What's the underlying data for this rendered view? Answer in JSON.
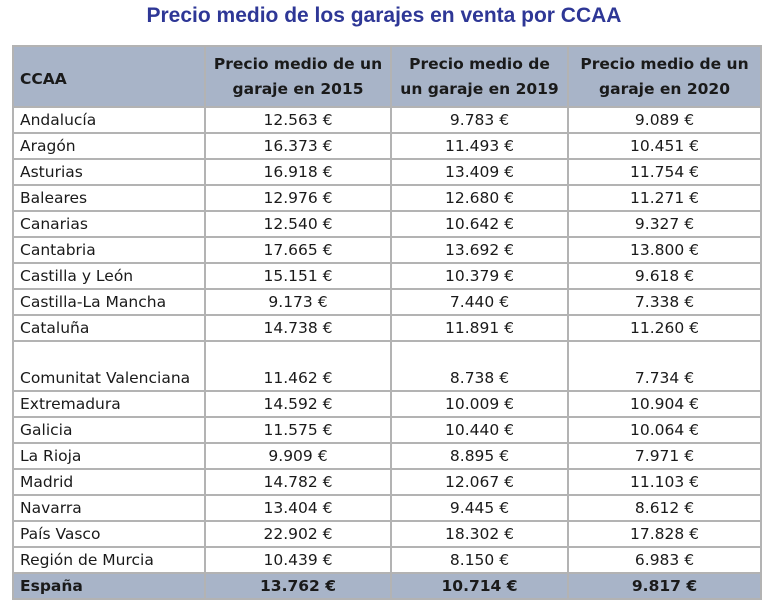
{
  "title": "Precio medio de los garajes en venta por CCAA",
  "table": {
    "headers": [
      "CCAA",
      "Precio medio de un garaje en 2015",
      "Precio medio de un garaje en 2019",
      "Precio medio de un garaje en 2020"
    ],
    "rows": [
      {
        "ccaa": "Andalucía",
        "p2015": "12.563 €",
        "p2019": "9.783 €",
        "p2020": "9.089 €"
      },
      {
        "ccaa": "Aragón",
        "p2015": "16.373 €",
        "p2019": "11.493 €",
        "p2020": "10.451 €"
      },
      {
        "ccaa": "Asturias",
        "p2015": "16.918 €",
        "p2019": "13.409 €",
        "p2020": "11.754 €"
      },
      {
        "ccaa": "Baleares",
        "p2015": "12.976 €",
        "p2019": "12.680 €",
        "p2020": "11.271 €"
      },
      {
        "ccaa": "Canarias",
        "p2015": "12.540 €",
        "p2019": "10.642 €",
        "p2020": "9.327 €"
      },
      {
        "ccaa": "Cantabria",
        "p2015": "17.665 €",
        "p2019": "13.692 €",
        "p2020": "13.800 €"
      },
      {
        "ccaa": "Castilla y León",
        "p2015": "15.151 €",
        "p2019": "10.379 €",
        "p2020": "9.618 €"
      },
      {
        "ccaa": "Castilla-La Mancha",
        "p2015": "9.173 €",
        "p2019": "7.440 €",
        "p2020": "7.338 €"
      },
      {
        "ccaa": "Cataluña",
        "p2015": "14.738 €",
        "p2019": "11.891 €",
        "p2020": "11.260 €"
      },
      {
        "ccaa": "Comunitat Valenciana",
        "p2015": "11.462 €",
        "p2019": "8.738 €",
        "p2020": "7.734 €"
      },
      {
        "ccaa": "Extremadura",
        "p2015": "14.592 €",
        "p2019": "10.009 €",
        "p2020": "10.904 €"
      },
      {
        "ccaa": "Galicia",
        "p2015": "11.575 €",
        "p2019": "10.440 €",
        "p2020": "10.064 €"
      },
      {
        "ccaa": "La Rioja",
        "p2015": "9.909 €",
        "p2019": "8.895 €",
        "p2020": "7.971 €"
      },
      {
        "ccaa": "Madrid",
        "p2015": "14.782 €",
        "p2019": "12.067 €",
        "p2020": "11.103 €"
      },
      {
        "ccaa": "Navarra",
        "p2015": "13.404 €",
        "p2019": "9.445 €",
        "p2020": "8.612 €"
      },
      {
        "ccaa": "País Vasco",
        "p2015": "22.902 €",
        "p2019": "18.302 €",
        "p2020": "17.828 €"
      },
      {
        "ccaa": "Región de Murcia",
        "p2015": "10.439 €",
        "p2019": "8.150 €",
        "p2020": "6.983 €"
      }
    ],
    "total": {
      "ccaa": "España",
      "p2015": "13.762 €",
      "p2019": "10.714 €",
      "p2020": "9.817 €"
    }
  },
  "colors": {
    "title": "#2e3796",
    "header_bg": "#a8b4c8",
    "border": "#b3b3b3"
  }
}
